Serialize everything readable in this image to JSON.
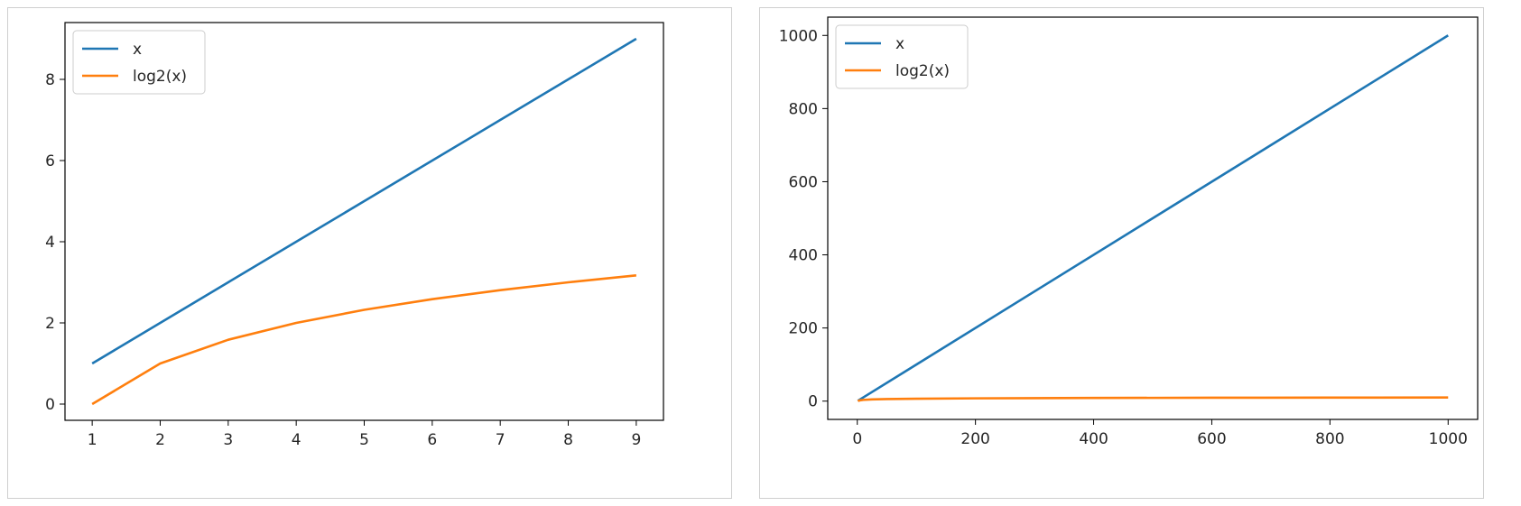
{
  "chart_data": [
    {
      "type": "line",
      "xlim": [
        0.6,
        9.4
      ],
      "ylim": [
        -0.4,
        9.4
      ],
      "xticks": [
        1,
        2,
        3,
        4,
        5,
        6,
        7,
        8,
        9
      ],
      "yticks": [
        0,
        2,
        4,
        6,
        8
      ],
      "grid": false,
      "legend": {
        "placement": "top-left"
      },
      "series": [
        {
          "name": "x",
          "color": "#1f77b4",
          "x": [
            1,
            2,
            3,
            4,
            5,
            6,
            7,
            8,
            9
          ],
          "y": [
            1,
            2,
            3,
            4,
            5,
            6,
            7,
            8,
            9
          ]
        },
        {
          "name": "log2(x)",
          "color": "#ff7f0e",
          "x": [
            1,
            2,
            3,
            4,
            5,
            6,
            7,
            8,
            9
          ],
          "y": [
            0,
            1,
            1.585,
            2,
            2.322,
            2.585,
            2.807,
            3,
            3.17
          ]
        }
      ]
    },
    {
      "type": "line",
      "xlim": [
        -50,
        1050
      ],
      "ylim": [
        -50,
        1050
      ],
      "xticks": [
        0,
        200,
        400,
        600,
        800,
        1000
      ],
      "yticks": [
        0,
        200,
        400,
        600,
        800,
        1000
      ],
      "grid": false,
      "legend": {
        "placement": "top-left"
      },
      "series": [
        {
          "name": "x",
          "color": "#1f77b4",
          "x": [
            1,
            1000
          ],
          "y": [
            1,
            1000
          ]
        },
        {
          "name": "log2(x)",
          "color": "#ff7f0e",
          "x": [
            1,
            2,
            5,
            10,
            25,
            50,
            100,
            200,
            400,
            600,
            800,
            1000
          ],
          "y": [
            0,
            1,
            2.32,
            3.32,
            4.64,
            5.64,
            6.64,
            7.64,
            8.64,
            9.23,
            9.64,
            9.97
          ]
        }
      ]
    }
  ]
}
